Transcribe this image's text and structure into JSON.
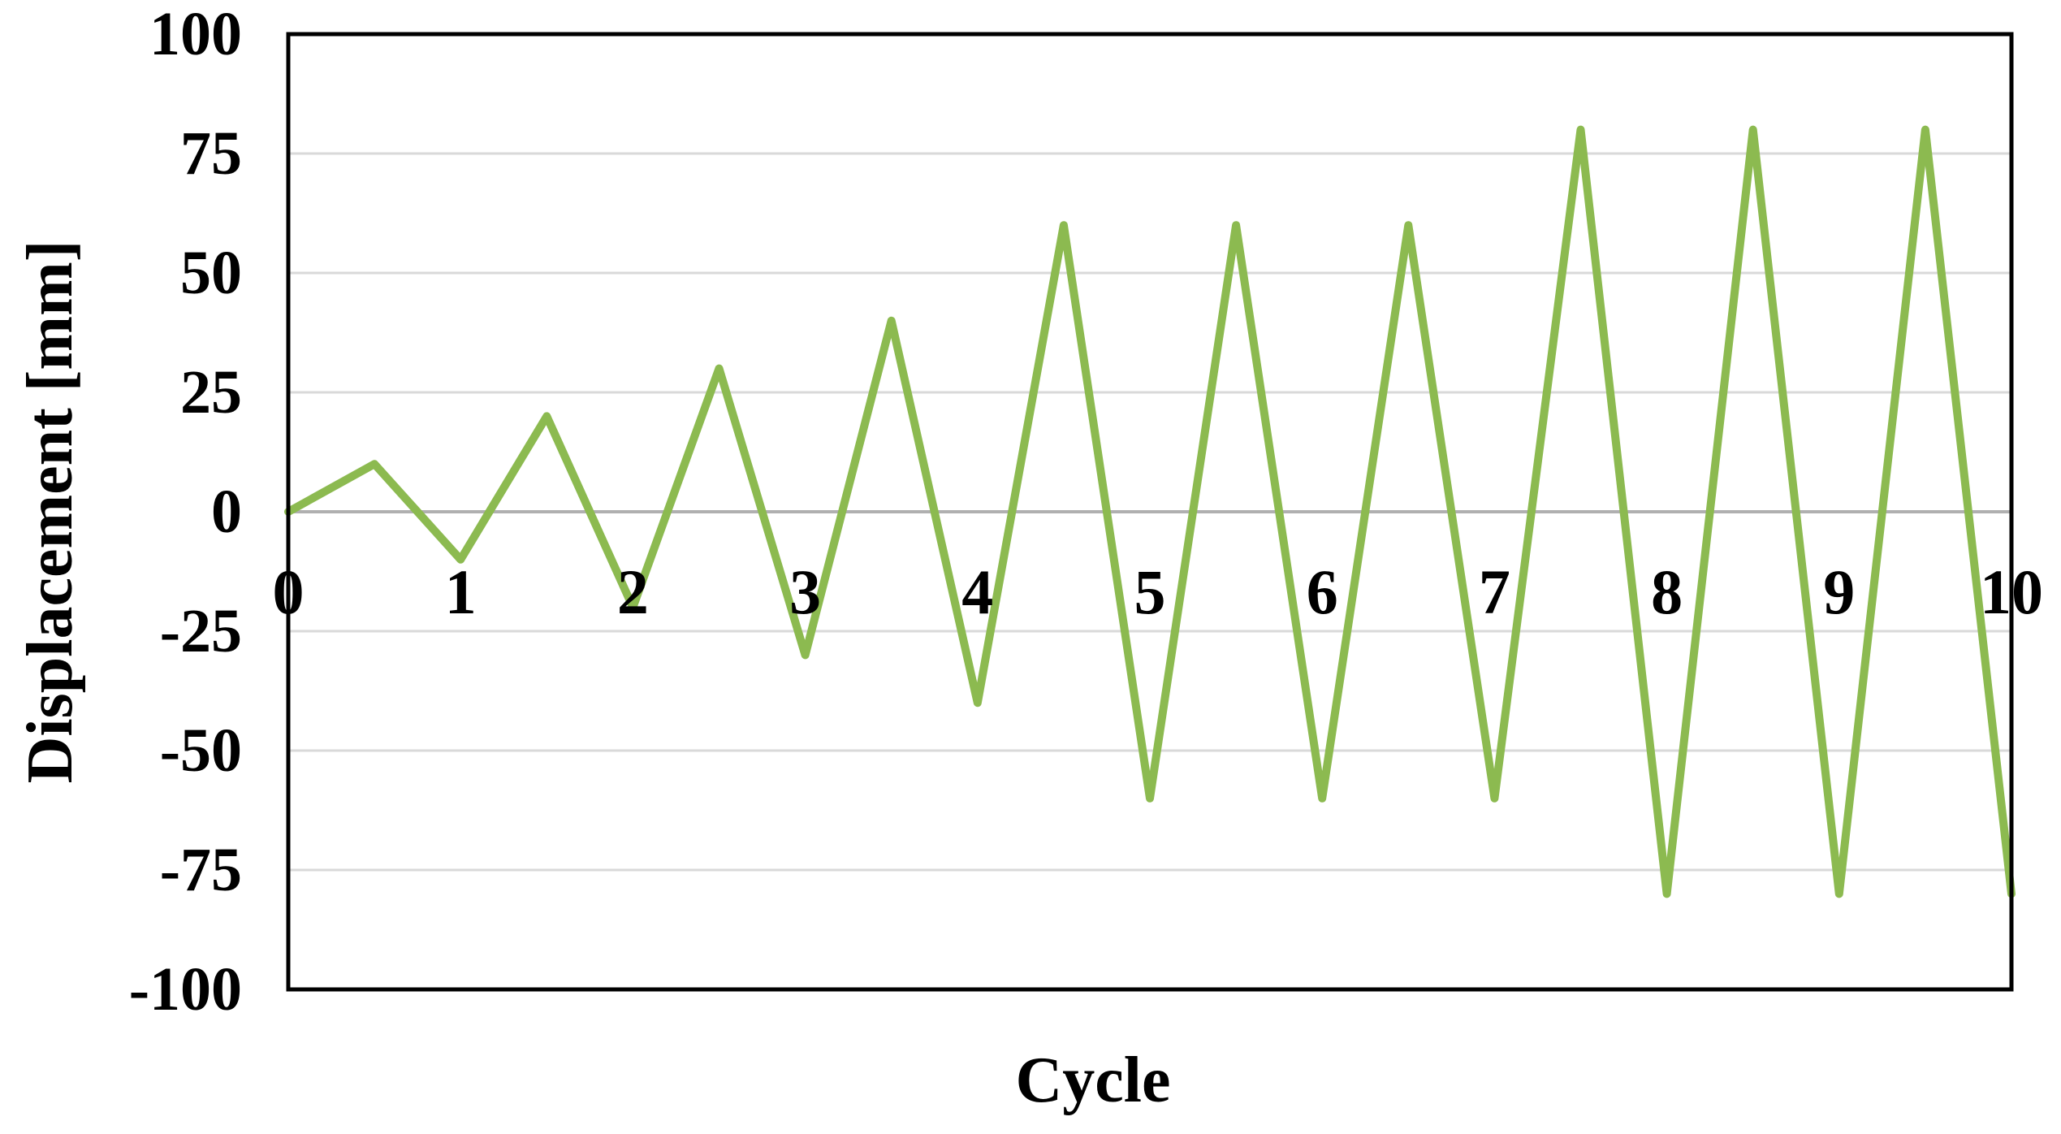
{
  "chart": {
    "title": "",
    "x_axis_title": "Cycle",
    "y_axis_title": "Displacement [mm]"
  },
  "chart_data": {
    "type": "line",
    "title": "",
    "xlabel": "Cycle",
    "ylabel": "Displacement [mm]",
    "x": [
      0,
      0.5,
      1,
      1.5,
      2,
      2.5,
      3,
      3.5,
      4,
      4.5,
      5,
      5.5,
      6,
      6.5,
      7,
      7.5,
      8,
      8.5,
      9,
      9.5,
      10
    ],
    "y": [
      0,
      10,
      -10,
      20,
      -20,
      30,
      -30,
      40,
      -40,
      60,
      -60,
      60,
      -60,
      60,
      -60,
      80,
      -80,
      80,
      -80,
      80,
      -80
    ],
    "xlim": [
      0,
      10
    ],
    "ylim": [
      -100,
      100
    ],
    "x_ticks": [
      0,
      1,
      2,
      3,
      4,
      5,
      6,
      7,
      8,
      9,
      10
    ],
    "y_ticks": [
      100,
      75,
      50,
      25,
      0,
      -25,
      -50,
      -75,
      -100
    ],
    "grid": "horizontal",
    "legend": "none",
    "x_label_position": "inside-below-zero-line",
    "line_width": 10,
    "colors": {
      "line": "#8CBA50",
      "gridline": "#D9D9D9",
      "zero_gridline": "#B0B0B0",
      "border": "#000000",
      "text": "#000000",
      "background": "#FFFFFF"
    }
  }
}
